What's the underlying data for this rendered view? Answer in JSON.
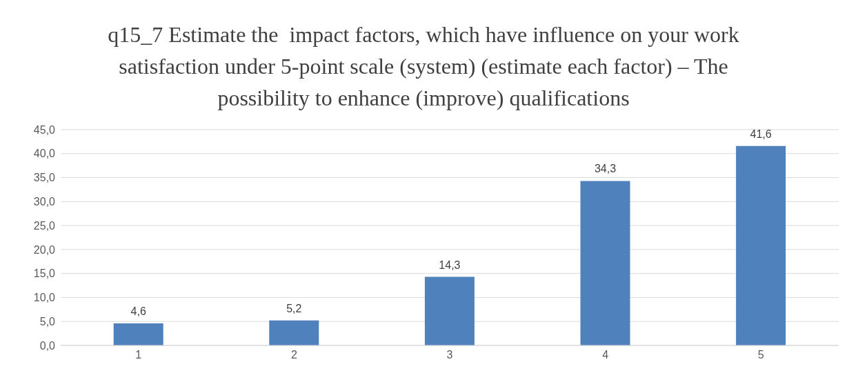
{
  "chart_data": {
    "type": "bar",
    "title": "q15_7 Estimate the  impact factors, which have influence on your work  satisfaction under 5-point scale (system) (estimate each factor) – The possibility to enhance (improve) qualifications",
    "categories": [
      "1",
      "2",
      "3",
      "4",
      "5"
    ],
    "values": [
      4.6,
      5.2,
      14.3,
      34.3,
      41.6
    ],
    "value_labels": [
      "4,6",
      "5,2",
      "14,3",
      "34,3",
      "41,6"
    ],
    "color": "#4f81bd",
    "ylim": [
      0,
      45
    ],
    "yticks": [
      {
        "value": 0,
        "label": "0,0"
      },
      {
        "value": 5,
        "label": "5,0"
      },
      {
        "value": 10,
        "label": "10,0"
      },
      {
        "value": 15,
        "label": "15,0"
      },
      {
        "value": 20,
        "label": "20,0"
      },
      {
        "value": 25,
        "label": "25,0"
      },
      {
        "value": 30,
        "label": "30,0"
      },
      {
        "value": 35,
        "label": "35,0"
      },
      {
        "value": 40,
        "label": "40,0"
      },
      {
        "value": 45,
        "label": "45,0"
      }
    ],
    "grid": "y",
    "legend": false
  }
}
